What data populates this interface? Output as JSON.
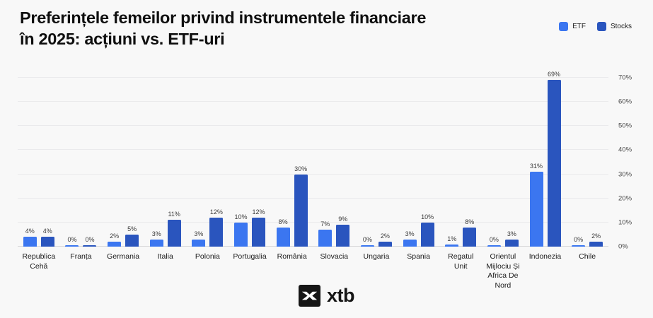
{
  "title": "Preferințele femeilor privind instrumentele financiare în 2025: acțiuni vs. ETF-uri",
  "footer": {
    "logo_text": "xtb"
  },
  "colors": {
    "etf": "#3B76F0",
    "stocks": "#2A55BE",
    "background": "#F8F8F8",
    "gridline": "#EAEAEC"
  },
  "chart_data": {
    "type": "bar",
    "title": "Preferințele femeilor privind instrumentele financiare în 2025: acțiuni vs. ETF-uri",
    "categories": [
      "Republica Cehă",
      "Franța",
      "Germania",
      "Italia",
      "Polonia",
      "Portugalia",
      "România",
      "Slovacia",
      "Ungaria",
      "Spania",
      "Regatul Unit",
      "Orientul Mijlociu Și Africa De Nord",
      "Indonezia",
      "Chile"
    ],
    "series": [
      {
        "name": "ETF",
        "color": "#3B76F0",
        "values": [
          4,
          0,
          2,
          3,
          3,
          10,
          8,
          7,
          0,
          3,
          1,
          0,
          31,
          0
        ]
      },
      {
        "name": "Stocks",
        "color": "#2A55BE",
        "values": [
          4,
          0,
          5,
          11,
          12,
          12,
          30,
          9,
          2,
          10,
          8,
          3,
          69,
          2
        ]
      }
    ],
    "value_label_suffix": "%",
    "xlabel": "",
    "ylabel": "",
    "ylim": [
      0,
      70
    ],
    "yticks": [
      "0%",
      "10%",
      "20%",
      "30%",
      "40%",
      "50%",
      "60%",
      "70%"
    ],
    "axis_side": "right",
    "grid": true,
    "legend_position": "top-right",
    "value_labels": true
  }
}
